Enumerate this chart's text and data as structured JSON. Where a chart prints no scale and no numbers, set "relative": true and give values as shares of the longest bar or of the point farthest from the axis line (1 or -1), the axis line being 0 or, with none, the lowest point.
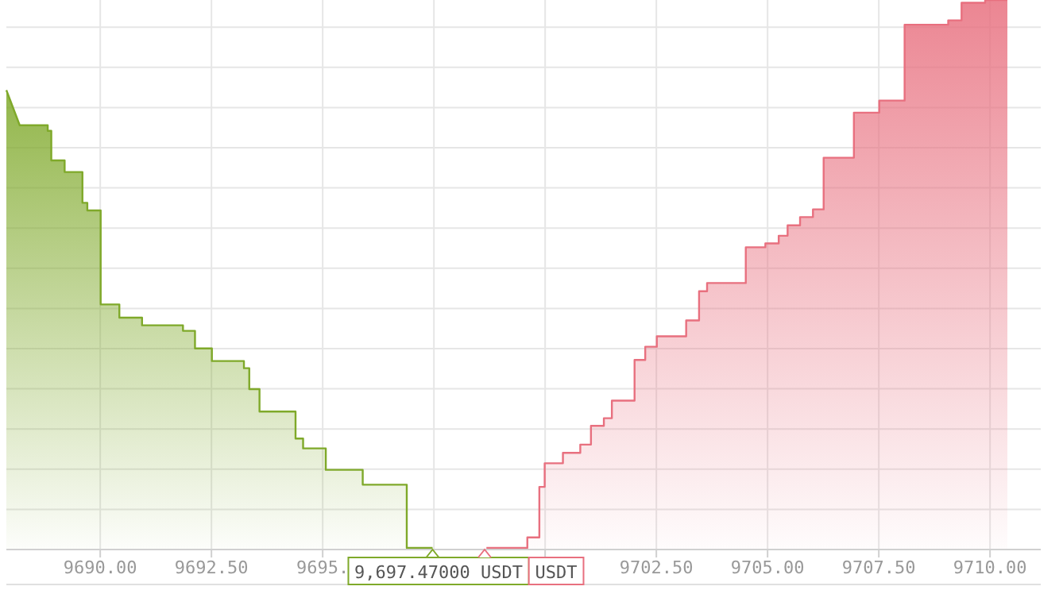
{
  "chart_data": {
    "type": "area",
    "relative": true,
    "grid": true,
    "marker": "none",
    "line_style": "solid",
    "xlim": [
      9687.89,
      9711.14
    ],
    "xticks": [
      {
        "value": 9690,
        "label": "9690.00"
      },
      {
        "value": 9692.5,
        "label": "9692.50"
      },
      {
        "value": 9695,
        "label": "9695."
      },
      {
        "value": 9697.5,
        "label": null
      },
      {
        "value": 9700,
        "label": null
      },
      {
        "value": 9702.5,
        "label": "9702.50"
      },
      {
        "value": 9705,
        "label": "9705.00"
      },
      {
        "value": 9707.5,
        "label": "9707.50"
      },
      {
        "value": 9710,
        "label": "9710.00"
      }
    ],
    "series": [
      {
        "color": "#7fa92a",
        "x": [
          9687.89,
          9688.19,
          9688.82,
          9688.82,
          9688.9,
          9688.9,
          9689.2,
          9689.2,
          9689.6,
          9689.6,
          9689.71,
          9689.71,
          9690.01,
          9690.01,
          9690.43,
          9690.43,
          9690.94,
          9690.94,
          9691.86,
          9691.86,
          9692.13,
          9692.13,
          9692.51,
          9692.51,
          9693.23,
          9693.23,
          9693.35,
          9693.35,
          9693.58,
          9693.58,
          9694.39,
          9694.39,
          9694.56,
          9694.56,
          9695.07,
          9695.07,
          9695.9,
          9695.9,
          9696.89,
          9696.89,
          9697.47
        ],
        "values": [
          0.836,
          0.772,
          0.772,
          0.762,
          0.762,
          0.708,
          0.708,
          0.687,
          0.687,
          0.631,
          0.631,
          0.617,
          0.617,
          0.446,
          0.446,
          0.422,
          0.422,
          0.408,
          0.408,
          0.398,
          0.398,
          0.366,
          0.366,
          0.343,
          0.343,
          0.33,
          0.33,
          0.292,
          0.292,
          0.251,
          0.251,
          0.202,
          0.202,
          0.184,
          0.184,
          0.145,
          0.145,
          0.118,
          0.118,
          0.003,
          0.003
        ]
      },
      {
        "color": "#e8707f",
        "x": [
          9698.68,
          9699.6,
          9699.6,
          9699.87,
          9699.87,
          9699.99,
          9699.99,
          9700.4,
          9700.4,
          9700.79,
          9700.79,
          9701.03,
          9701.03,
          9701.32,
          9701.32,
          9701.5,
          9701.5,
          9702.01,
          9702.01,
          9702.25,
          9702.25,
          9702.51,
          9702.51,
          9703.17,
          9703.17,
          9703.46,
          9703.46,
          9703.64,
          9703.64,
          9704.51,
          9704.51,
          9704.95,
          9704.95,
          9705.25,
          9705.25,
          9705.45,
          9705.45,
          9705.73,
          9705.73,
          9706.02,
          9706.02,
          9706.26,
          9706.26,
          9706.94,
          9706.94,
          9707.51,
          9707.51,
          9708.08,
          9708.08,
          9709.06,
          9709.06,
          9709.36,
          9709.36,
          9709.89,
          9709.89,
          9710.39
        ],
        "values": [
          0.003,
          0.003,
          0.022,
          0.022,
          0.114,
          0.114,
          0.157,
          0.157,
          0.176,
          0.176,
          0.191,
          0.191,
          0.225,
          0.225,
          0.239,
          0.239,
          0.271,
          0.271,
          0.345,
          0.345,
          0.369,
          0.369,
          0.388,
          0.388,
          0.417,
          0.417,
          0.47,
          0.47,
          0.485,
          0.485,
          0.55,
          0.55,
          0.557,
          0.557,
          0.571,
          0.571,
          0.59,
          0.59,
          0.605,
          0.605,
          0.619,
          0.619,
          0.713,
          0.713,
          0.795,
          0.795,
          0.817,
          0.817,
          0.955,
          0.955,
          0.963,
          0.963,
          0.995,
          0.995,
          1,
          1
        ]
      }
    ],
    "annotations": [
      {
        "text": "9,697.47000 USDT",
        "x": 9697.47,
        "y": 0
      },
      {
        "text": "USDT",
        "x": 9698.64,
        "y": 0
      }
    ]
  }
}
